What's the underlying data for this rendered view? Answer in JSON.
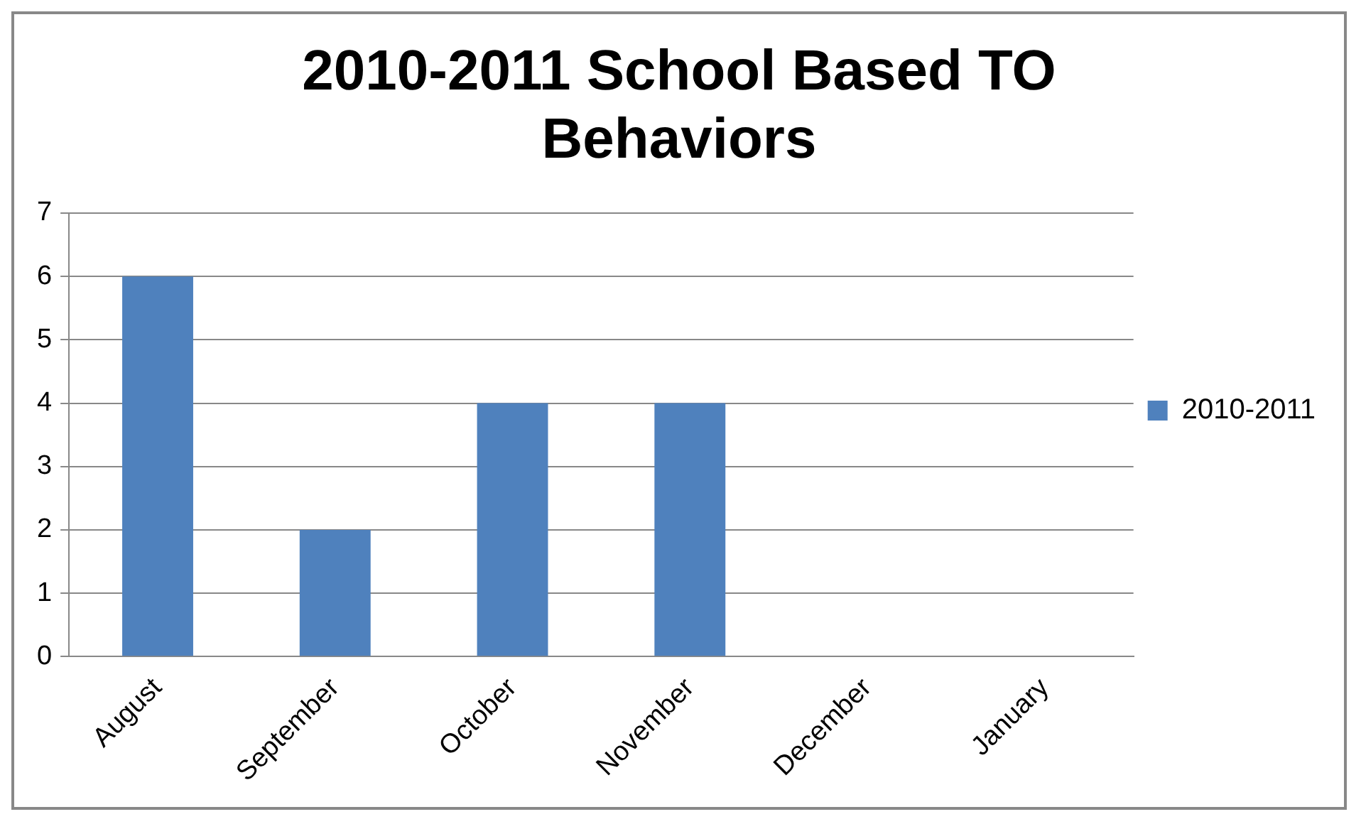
{
  "chart_data": {
    "type": "bar",
    "title": "2010-2011 School Based TO Behaviors",
    "categories": [
      "August",
      "September",
      "October",
      "November",
      "December",
      "January"
    ],
    "series": [
      {
        "name": "2010-2011",
        "color": "#4f81bd",
        "values": [
          6,
          2,
          4,
          4,
          0,
          0
        ]
      }
    ],
    "ylim": [
      0,
      7
    ],
    "yticks": [
      0,
      1,
      2,
      3,
      4,
      5,
      6,
      7
    ],
    "grid": "y",
    "legend": "right"
  }
}
